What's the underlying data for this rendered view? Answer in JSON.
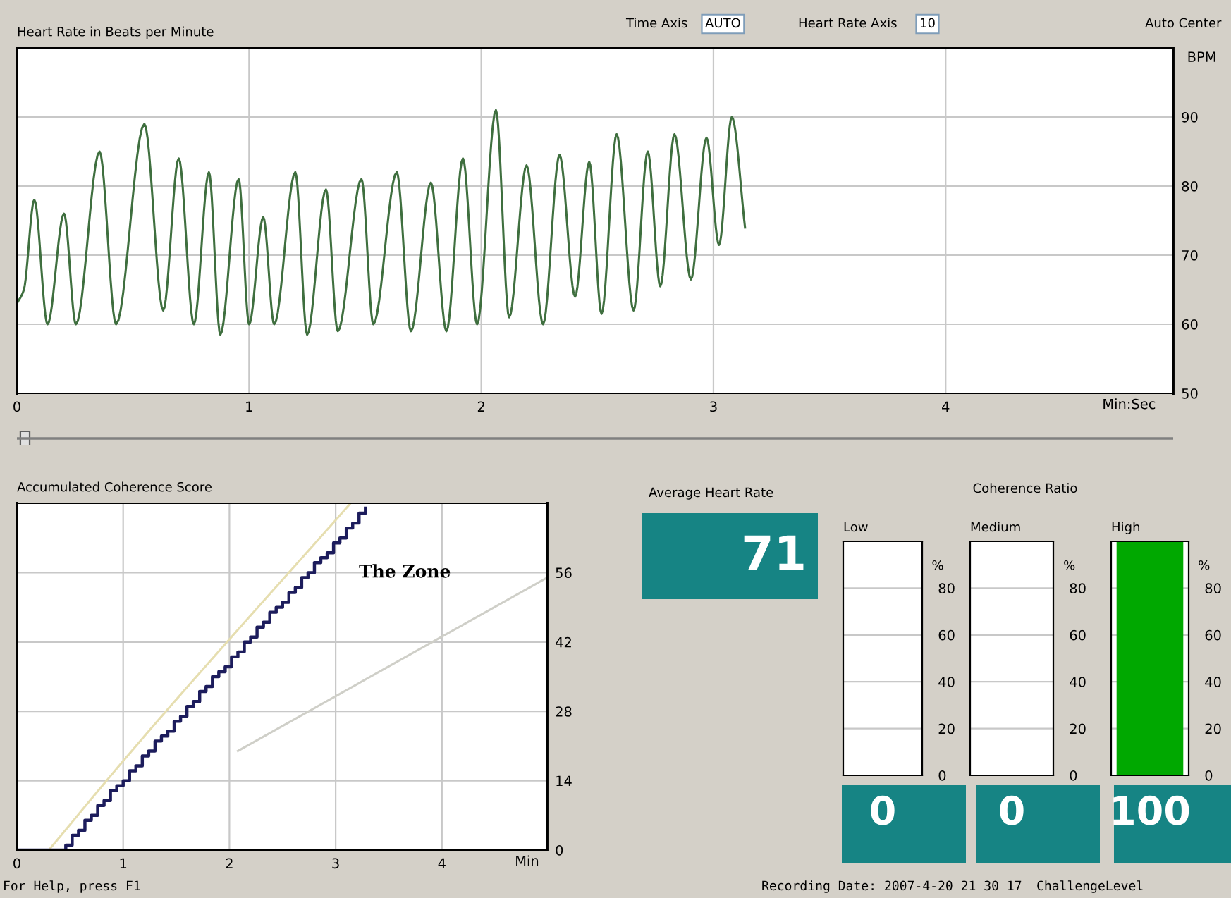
{
  "chart_data": [
    {
      "type": "line",
      "title": "Heart Rate in Beats per Minute",
      "xlabel": "Min:Sec",
      "ylabel": "BPM",
      "annotations": [
        "Time Axis",
        "AUTO",
        "Heart Rate Axis",
        "10",
        "Auto Center"
      ],
      "x": [
        0,
        0.03,
        0.075,
        0.132,
        0.203,
        0.254,
        0.356,
        0.427,
        0.549,
        0.63,
        0.697,
        0.762,
        0.827,
        0.876,
        0.955,
        1.0,
        1.061,
        1.108,
        1.199,
        1.25,
        1.331,
        1.382,
        1.484,
        1.535,
        1.636,
        1.697,
        1.783,
        1.85,
        1.921,
        1.982,
        2.063,
        2.12,
        2.195,
        2.266,
        2.337,
        2.404,
        2.465,
        2.518,
        2.583,
        2.656,
        2.717,
        2.771,
        2.832,
        2.903,
        2.97,
        3.024,
        3.079,
        3.136
      ],
      "series": [
        {
          "color": "#3f6f3f",
          "values": [
            63,
            65,
            78,
            60,
            76,
            60,
            85,
            60,
            89,
            62,
            84,
            60,
            82,
            58.5,
            81,
            60,
            75.5,
            60,
            82,
            58.5,
            79.5,
            59,
            81,
            60,
            82,
            59,
            80.5,
            59,
            84,
            60,
            91,
            61,
            83,
            60,
            84.5,
            64,
            83.5,
            61.5,
            87.5,
            62,
            85,
            65.5,
            87.5,
            66.5,
            87,
            71.5,
            90,
            74
          ]
        }
      ],
      "xlim": [
        0,
        4.98
      ],
      "ylim": [
        50,
        100
      ],
      "xticks": [
        0,
        1,
        2,
        3,
        4
      ],
      "yticks": [
        50,
        60,
        70,
        80,
        90
      ],
      "grid": true
    },
    {
      "type": "step",
      "title": "Accumulated Coherence Score",
      "xlabel": "Min",
      "annotations": [
        "The Zone"
      ],
      "series": [
        {
          "type": "line",
          "color": "#e6deb0",
          "x": [
            0.3,
            1.08,
            3.14
          ],
          "values": [
            0,
            20,
            70
          ]
        },
        {
          "type": "line",
          "color": "#cfcfc8",
          "x": [
            2.08,
            4.99
          ],
          "values": [
            20,
            55
          ]
        },
        {
          "type": "step",
          "color": "#1c1c5c",
          "x": [
            0,
            0.4,
            0.46,
            0.52,
            0.58,
            0.64,
            0.7,
            0.76,
            0.82,
            0.88,
            0.94,
            1.0,
            1.06,
            1.12,
            1.18,
            1.24,
            1.3,
            1.36,
            1.42,
            1.48,
            1.54,
            1.6,
            1.66,
            1.72,
            1.78,
            1.84,
            1.9,
            1.96,
            2.02,
            2.08,
            2.14,
            2.2,
            2.26,
            2.32,
            2.38,
            2.44,
            2.5,
            2.56,
            2.62,
            2.68,
            2.74,
            2.8,
            2.86,
            2.92,
            2.98,
            3.04,
            3.1,
            3.16,
            3.22,
            3.28
          ],
          "values": [
            0,
            0,
            1,
            3,
            4,
            6,
            7,
            9,
            10,
            12,
            13,
            14,
            16,
            17,
            19,
            20,
            22,
            23,
            24,
            26,
            27,
            29,
            30,
            32,
            33,
            35,
            36,
            37,
            39,
            40,
            42,
            43,
            45,
            46,
            48,
            49,
            50,
            52,
            53,
            55,
            56,
            58,
            59,
            60,
            62,
            63,
            65,
            66,
            68,
            69
          ]
        }
      ],
      "xlim": [
        0,
        4.99
      ],
      "ylim": [
        0,
        70
      ],
      "xticks": [
        0,
        1,
        2,
        3,
        4
      ],
      "yticks": [
        0,
        14,
        28,
        42,
        56
      ],
      "grid": true
    },
    {
      "type": "other",
      "title": "Average Heart Rate",
      "annotations": [
        "71"
      ]
    },
    {
      "type": "other",
      "title": "Coherence Ratio",
      "annotations": [
        "For Help, press F1",
        "Recording Date: 2007-4-20 21 30 17",
        "ChallengeLevel"
      ]
    },
    {
      "type": "bar",
      "ylabel": "%",
      "categories": [
        "Low"
      ],
      "values": [
        0
      ],
      "color": "#00a800",
      "ylim": [
        0,
        100
      ],
      "yticks": [
        0,
        20,
        40,
        60,
        80
      ],
      "grid": "y",
      "data_labels": true
    },
    {
      "type": "bar",
      "ylabel": "%",
      "categories": [
        "Medium"
      ],
      "values": [
        0
      ],
      "color": "#00a800",
      "ylim": [
        0,
        100
      ],
      "yticks": [
        0,
        20,
        40,
        60,
        80
      ],
      "grid": "y",
      "data_labels": true
    },
    {
      "type": "bar",
      "ylabel": "%",
      "categories": [
        "High"
      ],
      "values": [
        100
      ],
      "color": "#00a800",
      "ylim": [
        0,
        100
      ],
      "yticks": [
        0,
        20,
        40,
        60,
        80
      ],
      "grid": "y",
      "data_labels": true
    }
  ]
}
